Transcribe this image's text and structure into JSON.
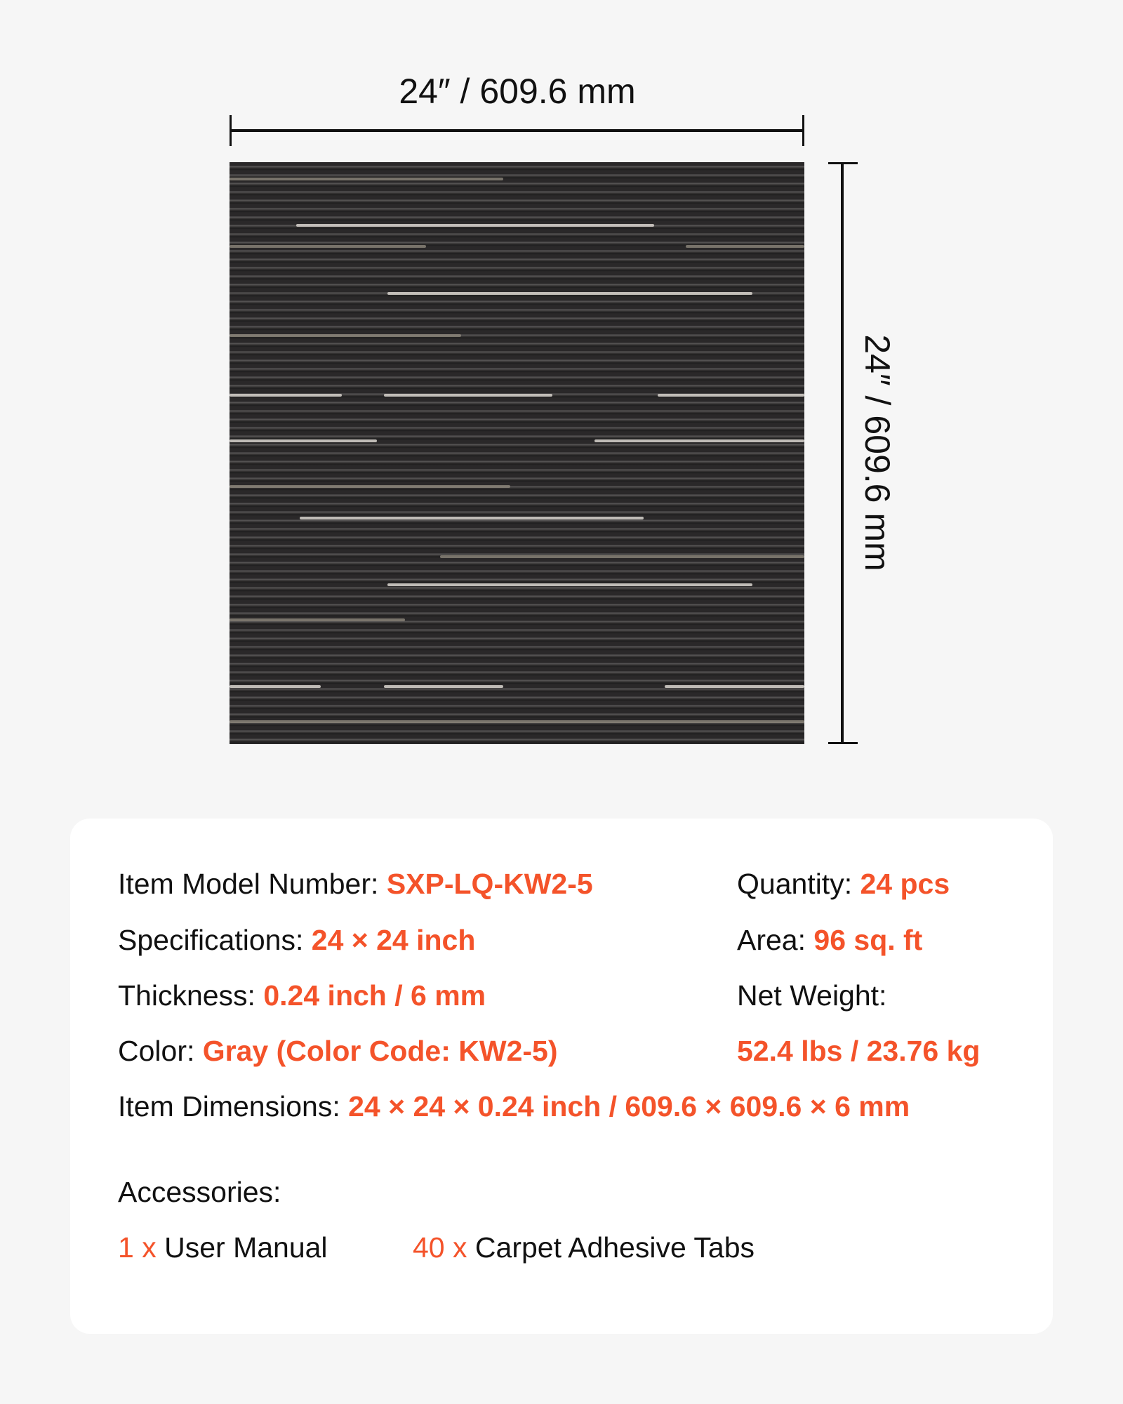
{
  "dimensions": {
    "width_label": "24″ / 609.6 mm",
    "height_label": "24″ / 609.6 mm"
  },
  "colors": {
    "accent": "#f4532a",
    "text": "#111111",
    "background": "#f6f6f6",
    "card": "#ffffff"
  },
  "specs": {
    "model": {
      "label": "Item Model Number:",
      "value": "SXP-LQ-KW2-5"
    },
    "quantity": {
      "label": "Quantity:",
      "value": "24 pcs"
    },
    "specifications": {
      "label": "Specifications:",
      "value": "24 × 24 inch"
    },
    "area": {
      "label": "Area:",
      "value": "96 sq. ft"
    },
    "thickness": {
      "label": "Thickness:",
      "value": "0.24 inch / 6 mm"
    },
    "net_weight": {
      "label": "Net Weight:",
      "value": "52.4 lbs / 23.76 kg"
    },
    "color": {
      "label": "Color:",
      "value": "Gray (Color Code: KW2-5)"
    },
    "item_dimensions": {
      "label": "Item Dimensions:",
      "value": "24 × 24 × 0.24 inch / 609.6 × 609.6 × 6 mm"
    }
  },
  "accessories": {
    "title": "Accessories:",
    "items": [
      {
        "qty": "1 x",
        "name": "User Manual"
      },
      {
        "qty": "40 x",
        "name": "Carpet Adhesive Tabs"
      }
    ]
  }
}
